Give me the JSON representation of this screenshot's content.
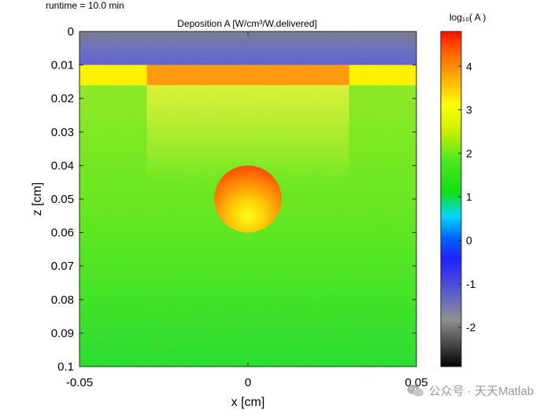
{
  "runtime_label": "runtime = 10.0 min",
  "watermark": {
    "text": "公众号 · 天天Matlab",
    "icon": "wechat-icon"
  },
  "chart_data": {
    "type": "heatmap",
    "title": "Deposition A [W/cm³/W.delivered]",
    "xlabel": "x [cm]",
    "ylabel": "z [cm]",
    "xlim": [
      -0.05,
      0.05
    ],
    "ylim": [
      0,
      0.1
    ],
    "y_reversed": true,
    "x_ticks": [
      -0.05,
      0,
      0.05
    ],
    "x_tick_labels": [
      "-0.05",
      "0",
      "0.05"
    ],
    "y_ticks": [
      0,
      0.01,
      0.02,
      0.03,
      0.04,
      0.05,
      0.06,
      0.07,
      0.08,
      0.09,
      0.1
    ],
    "y_tick_labels": [
      "0",
      "0.01",
      "0.02",
      "0.03",
      "0.04",
      "0.05",
      "0.06",
      "0.07",
      "0.08",
      "0.09",
      "0.1"
    ],
    "colorbar": {
      "label": "log₁₀( A )",
      "range": [
        -2.9,
        4.8
      ],
      "ticks": [
        -2,
        -1,
        0,
        1,
        2,
        3,
        4
      ],
      "tick_labels": [
        "-2",
        "-1",
        "0",
        "1",
        "2",
        "3",
        "4"
      ]
    },
    "regions": [
      {
        "name": "air",
        "z_range": [
          0,
          0.01
        ],
        "log10_value": -1.6
      },
      {
        "name": "epidermis",
        "z_range": [
          0.01,
          0.016
        ],
        "log10_value": 3.0
      },
      {
        "name": "illuminated-epidermis",
        "x_range": [
          -0.03,
          0.03
        ],
        "z_range": [
          0.01,
          0.016
        ],
        "log10_value": 3.7
      },
      {
        "name": "dermis",
        "z_range": [
          0.016,
          0.1
        ],
        "log10_value_top": 2.2,
        "log10_value_bottom": 1.1
      },
      {
        "name": "blood-vessel",
        "center": [
          0,
          0.05
        ],
        "radius": 0.01,
        "log10_value_top": 4.3,
        "log10_value_bottom": 2.8
      }
    ]
  }
}
